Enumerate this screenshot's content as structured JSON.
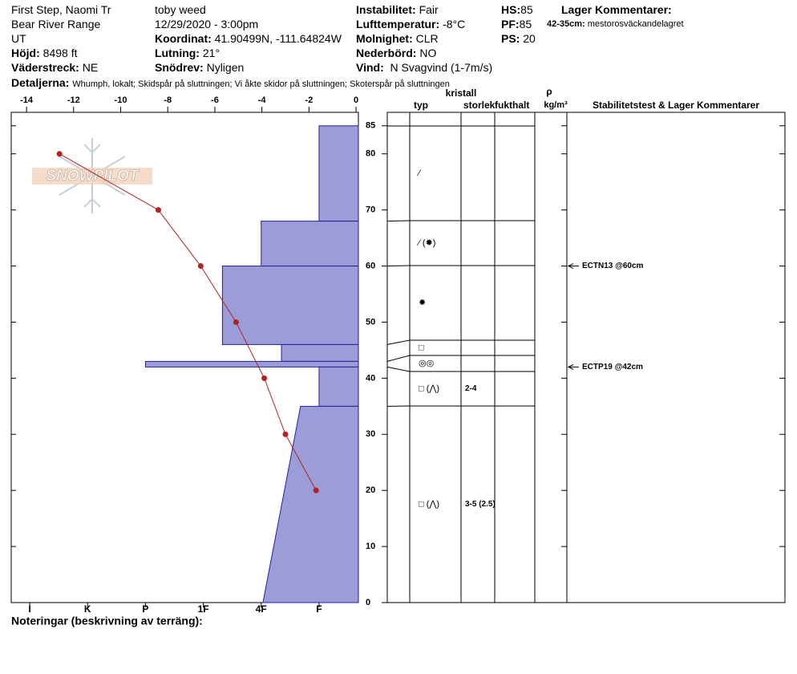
{
  "header": {
    "site": "First Step, Naomi Tr",
    "range": "Bear River Range",
    "state": "UT",
    "elevation": {
      "label": "Höjd:",
      "value": "8498 ft"
    },
    "aspect": {
      "label": "Väderstreck:",
      "value": "NE"
    },
    "observer": "toby weed",
    "datetime": "12/29/2020 - 3:00pm",
    "coordinates": {
      "label": "Koordinat:",
      "value": "41.90499N, -111.64824W"
    },
    "slope": {
      "label": "Lutning:",
      "value": "21°"
    },
    "wind_loading": {
      "label": "Snödrev:",
      "value": "Nyligen"
    },
    "instability": {
      "label": "Instabilitet:",
      "value": "Fair"
    },
    "air_temp": {
      "label": "Lufttemperatur:",
      "value": "-8°C"
    },
    "sky": {
      "label": "Molnighet:",
      "value": "CLR"
    },
    "precip": {
      "label": "Nederbörd:",
      "value": "NO"
    },
    "wind": {
      "label": "Vind:",
      "value": "N Svagvind (1-7m/s)"
    },
    "hs": {
      "label": "HS:",
      "value": "85"
    },
    "pf": {
      "label": "PF:",
      "value": "85"
    },
    "ps": {
      "label": "PS:",
      "value": "20"
    },
    "layer_comments_title": "Lager Kommentarer:",
    "layer_comment": {
      "label": "42-35cm:",
      "value": "mestorosväckandelagret"
    },
    "details": {
      "label": "Detaljerna:",
      "value": "Whumph, lokalt;  Skidspår på sluttningen;  Vi åkte skidor på sluttningen;  Skoterspår på sluttningen"
    }
  },
  "chart_data": {
    "type": "snowpit",
    "logo": "SNOWPILOT",
    "xlim": [
      -14.65,
      0.1
    ],
    "xticks": [
      -14,
      -12,
      -10,
      -8,
      -6,
      -4,
      -2,
      0
    ],
    "ylim": [
      0,
      87.4
    ],
    "yticks": [
      0,
      10,
      20,
      30,
      40,
      50,
      60,
      70,
      80,
      85
    ],
    "hardness_lim": [
      6.32,
      0.32
    ],
    "hardness_ticks": [
      {
        "value": 6,
        "label": "I"
      },
      {
        "value": 5,
        "label": "K"
      },
      {
        "value": 4,
        "label": "P"
      },
      {
        "value": 3,
        "label": "1F"
      },
      {
        "value": 2,
        "label": "4F"
      },
      {
        "value": 1,
        "label": "F"
      }
    ],
    "layer_color": "#9c9cd8",
    "temperature": {
      "color": "#b22222",
      "depths": [
        80,
        70,
        60,
        50,
        40,
        30,
        20
      ],
      "values": [
        -12.6,
        -8.4,
        -6.6,
        -5.1,
        -3.9,
        -3.0,
        -1.7
      ]
    },
    "layers": [
      {
        "top": 85,
        "bottom": 68,
        "hardness": 1,
        "crystal": "⁄"
      },
      {
        "top": 68,
        "bottom": 60,
        "hardness": 2,
        "crystal": "⁄ (✹)"
      },
      {
        "top": 60,
        "bottom": 46,
        "hardness": 2.67,
        "crystal": "✹"
      },
      {
        "top": 46,
        "bottom": 43,
        "hardness": 1.65,
        "crystal": "□"
      },
      {
        "top": 43,
        "bottom": 42,
        "hardness": 4,
        "crystal": "◎◎"
      },
      {
        "top": 42,
        "bottom": 35,
        "hardness": 1,
        "crystal": "□ (⋀)",
        "size": "2-4"
      },
      {
        "top": 35,
        "bottom": 0,
        "hardness": 1.32,
        "hardness_bottom": 1.97,
        "crystal": "□ (⋀)",
        "size": "3-5 (2.5)"
      }
    ],
    "table_headers": {
      "crystal": "kristall",
      "type": "typ",
      "size": "storlek",
      "moisture": "fukthalt",
      "density_symbol": "ρ",
      "density_unit": "kg/m³",
      "comments": "Stabilitetstest & Lager Kommentarer"
    },
    "tests": [
      {
        "depth": 60,
        "label": "ECTN13 @60cm"
      },
      {
        "depth": 42,
        "label": "ECTP19 @42cm"
      }
    ],
    "notes": "Noteringar (beskrivning av terräng):"
  }
}
